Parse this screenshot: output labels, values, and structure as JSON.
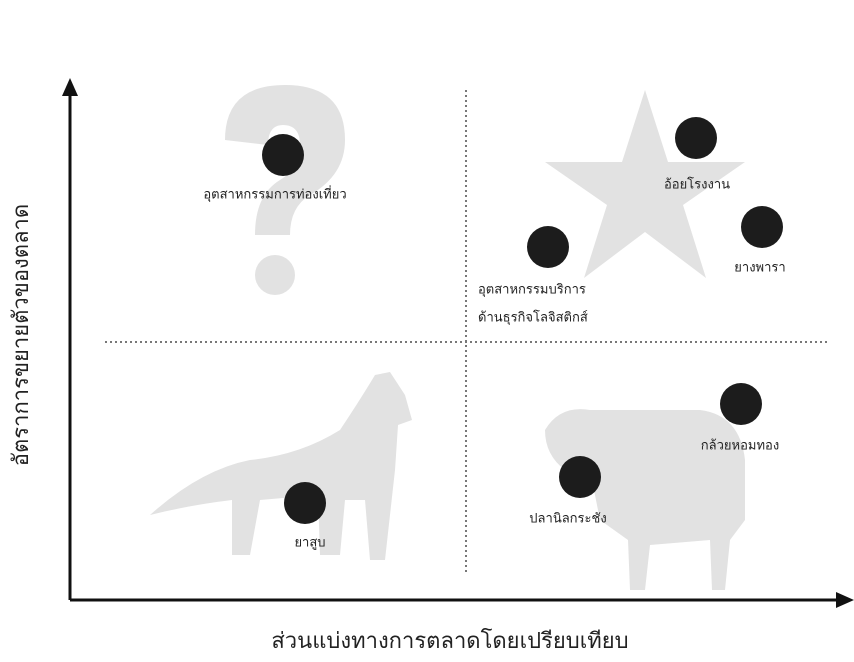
{
  "y_axis_label": "อัตราการขยายตัวของตลาด",
  "x_axis_label": "ส่วนแบ่งทางการตลาดโดยเปรียบเทียบ",
  "nodes": [
    {
      "lines": [
        "อุตสาหกรรมการท่องเที่ยว"
      ]
    },
    {
      "lines": [
        "อ้อยโรงงาน"
      ]
    },
    {
      "lines": [
        "ยางพารา"
      ]
    },
    {
      "lines": [
        "อุตสาหกรรมบริการ",
        "ด้านธุรกิจโลจิสติกส์"
      ]
    },
    {
      "lines": [
        "กล้วยหอมทอง"
      ]
    },
    {
      "lines": [
        "ปลานิลกระชัง"
      ]
    },
    {
      "lines": [
        "ยาสูบ"
      ]
    }
  ]
}
